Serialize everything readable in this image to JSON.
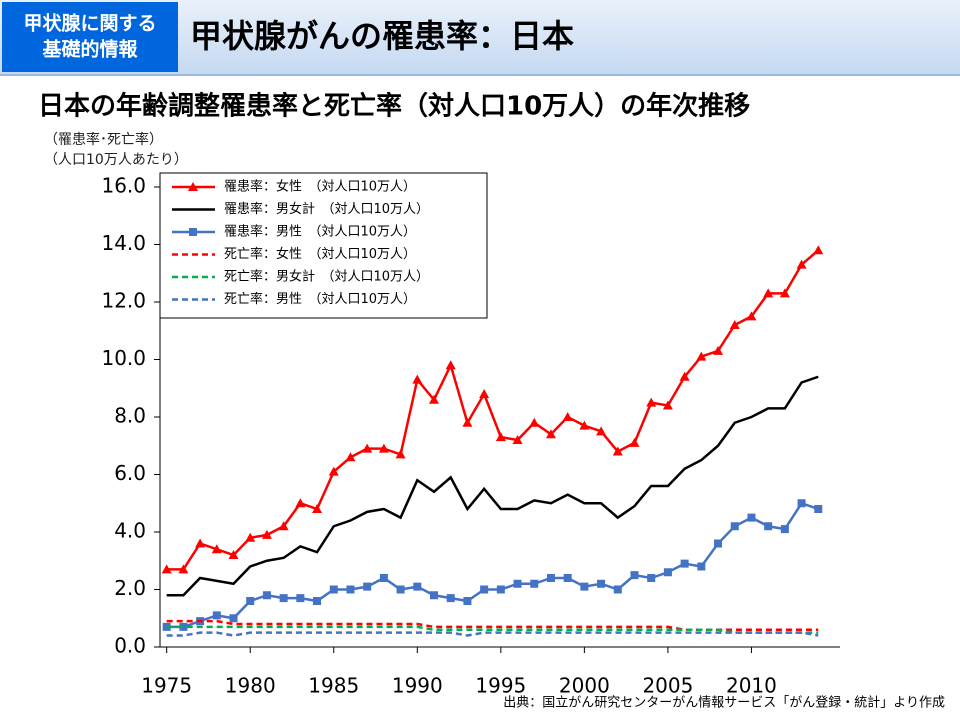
{
  "header": {
    "badge": [
      "甲状腺に関する",
      "基礎的情報"
    ],
    "title": "甲状腺がんの罹患率：日本"
  },
  "chart_data": {
    "type": "line",
    "title": "日本の年齢調整罹患率と死亡率（対人口10万人）の年次推移",
    "ylabel": [
      "（罹患率･死亡率）",
      "（人口10万人あたり）"
    ],
    "source": "出典：国立がん研究センターがん情報サービス「がん登録・統計」より作成",
    "x": [
      1975,
      1976,
      1977,
      1978,
      1979,
      1980,
      1981,
      1982,
      1983,
      1984,
      1985,
      1986,
      1987,
      1988,
      1989,
      1990,
      1991,
      1992,
      1993,
      1994,
      1995,
      1996,
      1997,
      1998,
      1999,
      2000,
      2001,
      2002,
      2003,
      2004,
      2005,
      2006,
      2007,
      2008,
      2009,
      2010,
      2011,
      2012,
      2013,
      2014
    ],
    "xlim": [
      1974.6,
      2015.3
    ],
    "xticks": [
      1975,
      1980,
      1985,
      1990,
      1995,
      2000,
      2005,
      2010
    ],
    "ylim": [
      0,
      16
    ],
    "yticks": [
      {
        "value": 0,
        "label": "0.0"
      },
      {
        "value": 2,
        "label": "2.0"
      },
      {
        "value": 4,
        "label": "4.0"
      },
      {
        "value": 6,
        "label": "6.0"
      },
      {
        "value": 8,
        "label": "8.0"
      },
      {
        "value": 10,
        "label": "10.0"
      },
      {
        "value": 12,
        "label": "12.0"
      },
      {
        "value": 14,
        "label": "14.0"
      },
      {
        "value": 16,
        "label": "16.0"
      }
    ],
    "legend": "upper left",
    "series": [
      {
        "name": "罹患率：女性　（対人口10万人）",
        "color": "#ff0000",
        "marker": "triangle",
        "line_style": "solid",
        "values": [
          2.7,
          2.7,
          3.6,
          3.4,
          3.2,
          3.8,
          3.9,
          4.2,
          5.0,
          4.8,
          6.1,
          6.6,
          6.9,
          6.9,
          6.7,
          9.3,
          8.6,
          9.8,
          7.8,
          8.8,
          7.3,
          7.2,
          7.8,
          7.4,
          8.0,
          7.7,
          7.5,
          6.8,
          7.1,
          8.5,
          8.4,
          9.4,
          10.1,
          10.3,
          11.2,
          11.5,
          12.3,
          12.3,
          13.3,
          13.8
        ]
      },
      {
        "name": "罹患率：男女計　（対人口10万人）",
        "color": "#000000",
        "marker": "none",
        "line_style": "solid",
        "values": [
          1.8,
          1.8,
          2.4,
          2.3,
          2.2,
          2.8,
          3.0,
          3.1,
          3.5,
          3.3,
          4.2,
          4.4,
          4.7,
          4.8,
          4.5,
          5.8,
          5.4,
          5.9,
          4.8,
          5.5,
          4.8,
          4.8,
          5.1,
          5.0,
          5.3,
          5.0,
          5.0,
          4.5,
          4.9,
          5.6,
          5.6,
          6.2,
          6.5,
          7.0,
          7.8,
          8.0,
          8.3,
          8.3,
          9.2,
          9.4
        ]
      },
      {
        "name": "罹患率：男性　（対人口10万人）",
        "color": "#4472c4",
        "marker": "square",
        "line_style": "solid",
        "values": [
          0.7,
          0.7,
          0.9,
          1.1,
          1.0,
          1.6,
          1.8,
          1.7,
          1.7,
          1.6,
          2.0,
          2.0,
          2.1,
          2.4,
          2.0,
          2.1,
          1.8,
          1.7,
          1.6,
          2.0,
          2.0,
          2.2,
          2.2,
          2.4,
          2.4,
          2.1,
          2.2,
          2.0,
          2.5,
          2.4,
          2.6,
          2.9,
          2.8,
          3.6,
          4.2,
          4.5,
          4.2,
          4.1,
          5.0,
          4.8
        ]
      },
      {
        "name": "死亡率：女性　（対人口10万人）",
        "color": "#ff0000",
        "marker": "none",
        "line_style": "dashed",
        "values": [
          0.9,
          0.9,
          0.9,
          0.9,
          0.8,
          0.8,
          0.8,
          0.8,
          0.8,
          0.8,
          0.8,
          0.8,
          0.8,
          0.8,
          0.8,
          0.8,
          0.7,
          0.7,
          0.7,
          0.7,
          0.7,
          0.7,
          0.7,
          0.7,
          0.7,
          0.7,
          0.7,
          0.7,
          0.7,
          0.7,
          0.7,
          0.6,
          0.6,
          0.6,
          0.6,
          0.6,
          0.6,
          0.6,
          0.6,
          0.6
        ]
      },
      {
        "name": "死亡率：男女計　（対人口10万人）",
        "color": "#00b050",
        "marker": "none",
        "line_style": "dashed",
        "values": [
          0.7,
          0.7,
          0.7,
          0.7,
          0.7,
          0.7,
          0.7,
          0.7,
          0.7,
          0.7,
          0.7,
          0.7,
          0.7,
          0.7,
          0.7,
          0.7,
          0.6,
          0.6,
          0.6,
          0.6,
          0.6,
          0.6,
          0.6,
          0.6,
          0.6,
          0.6,
          0.6,
          0.6,
          0.6,
          0.6,
          0.6,
          0.6,
          0.6,
          0.6,
          0.5,
          0.5,
          0.5,
          0.5,
          0.5,
          0.5
        ]
      },
      {
        "name": "死亡率：男性　（対人口10万人）",
        "color": "#4472c4",
        "marker": "none",
        "line_style": "dashed",
        "values": [
          0.4,
          0.4,
          0.5,
          0.5,
          0.4,
          0.5,
          0.5,
          0.5,
          0.5,
          0.5,
          0.5,
          0.5,
          0.5,
          0.5,
          0.5,
          0.5,
          0.5,
          0.5,
          0.4,
          0.5,
          0.5,
          0.5,
          0.5,
          0.5,
          0.5,
          0.5,
          0.5,
          0.5,
          0.5,
          0.5,
          0.5,
          0.5,
          0.5,
          0.5,
          0.5,
          0.5,
          0.5,
          0.5,
          0.5,
          0.4
        ]
      }
    ]
  }
}
